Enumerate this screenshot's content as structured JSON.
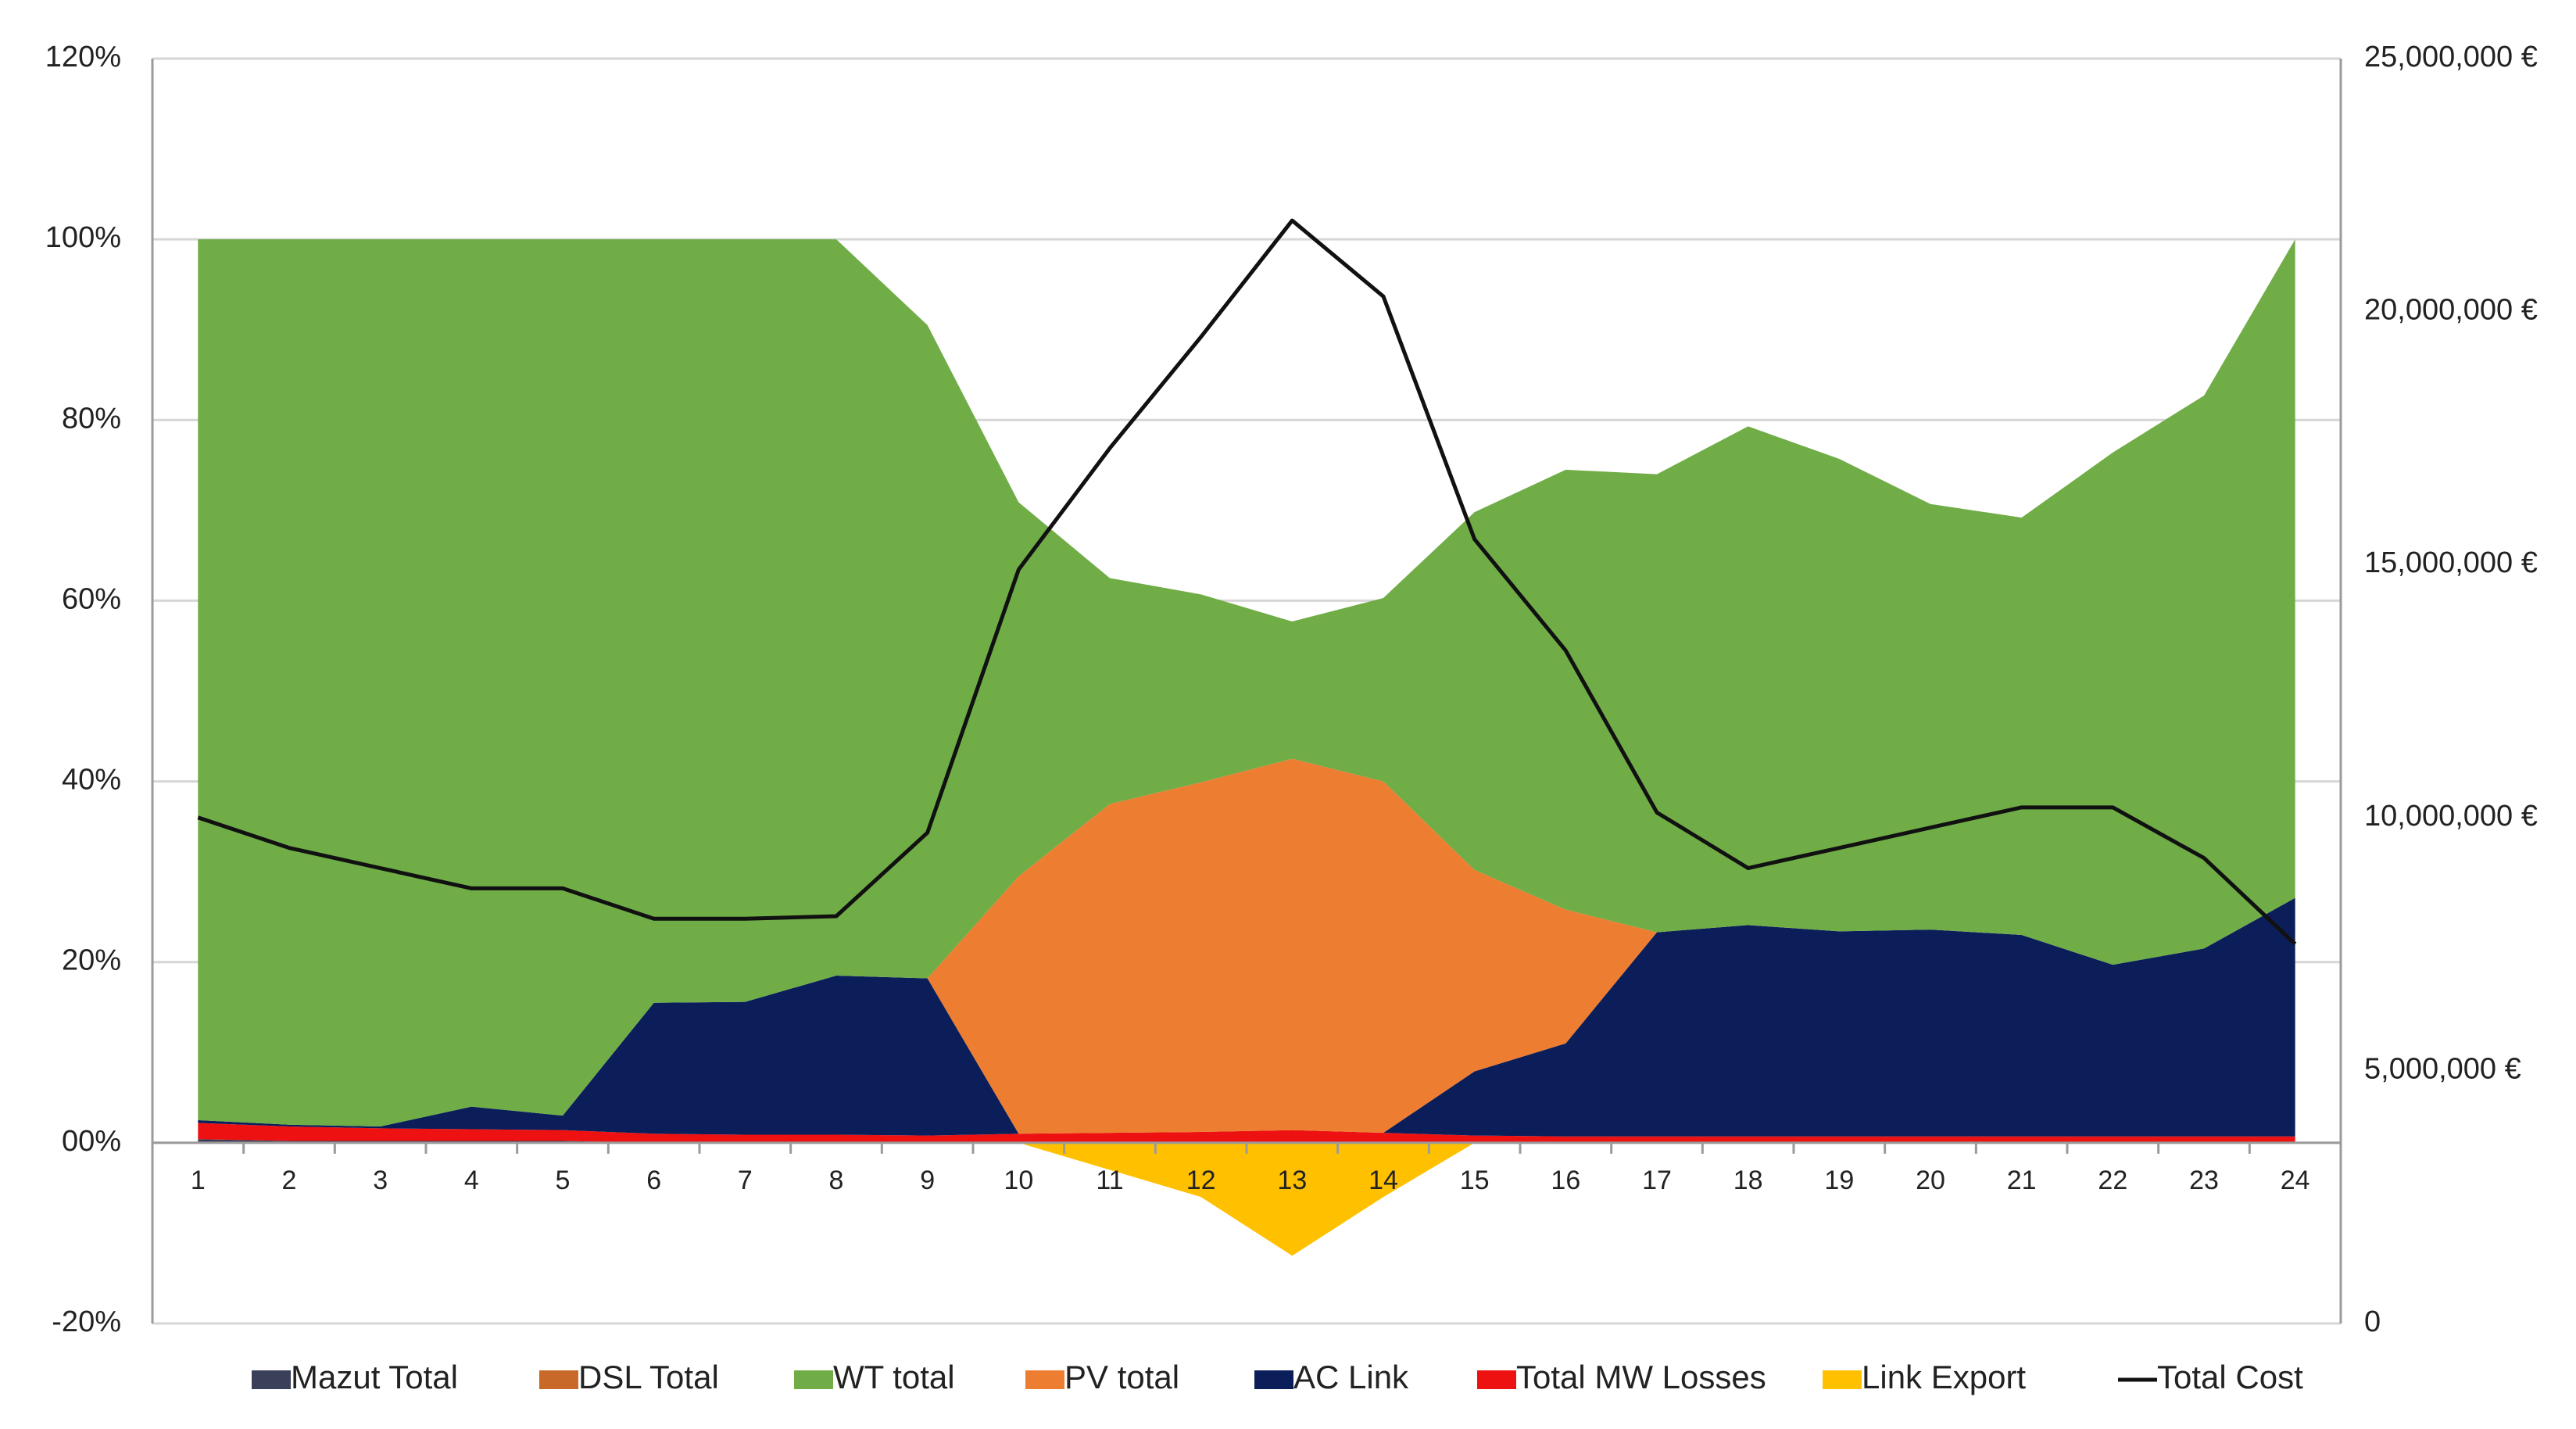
{
  "chart_data": {
    "type": "area",
    "title": "",
    "xlabel": "",
    "ylabel": "",
    "x": [
      1,
      2,
      3,
      4,
      5,
      6,
      7,
      8,
      9,
      10,
      11,
      12,
      13,
      14,
      15,
      16,
      17,
      18,
      19,
      20,
      21,
      22,
      23,
      24
    ],
    "x_tick_labels": [
      "1",
      "2",
      "3",
      "4",
      "5",
      "6",
      "7",
      "8",
      "9",
      "10",
      "11",
      "12",
      "13",
      "14",
      "15",
      "16",
      "17",
      "18",
      "19",
      "20",
      "21",
      "22",
      "23",
      "24"
    ],
    "y_left": {
      "min": -0.2,
      "max": 1.2,
      "ticks": [
        -0.2,
        0,
        0.2,
        0.4,
        0.6,
        0.8,
        1.0,
        1.2
      ],
      "tick_labels": [
        "-20%",
        "00%",
        "20%",
        "40%",
        "60%",
        "80%",
        "100%",
        "120%"
      ]
    },
    "y_right": {
      "min": 0,
      "max": 25000000,
      "ticks": [
        0,
        5000000,
        10000000,
        15000000,
        20000000,
        25000000
      ],
      "tick_labels": [
        "0",
        "5,000,000 €",
        "10,000,000 €",
        "15,000,000 €",
        "20,000,000 €",
        "25,000,000 €"
      ]
    },
    "grid": true,
    "stacked": true,
    "series": [
      {
        "name": "Mazut Total",
        "color": "#3a3f5a",
        "axis": "left",
        "kind": "stacked-area",
        "values": [
          0.004,
          0.002,
          0.002,
          0.002,
          0.002,
          0,
          0,
          0,
          0,
          0,
          0,
          0,
          0,
          0,
          0,
          0,
          0,
          0,
          0,
          0,
          0,
          0,
          0,
          0
        ]
      },
      {
        "name": "DSL Total",
        "color": "#c8692a",
        "axis": "left",
        "kind": "stacked-area",
        "values": [
          0,
          0,
          0,
          0,
          0,
          0,
          0,
          0,
          0,
          0,
          0,
          0,
          0,
          0,
          0,
          0,
          0,
          0,
          0,
          0,
          0,
          0,
          0,
          0
        ]
      },
      {
        "name": "Total MW Losses",
        "color": "#ee1111",
        "axis": "left",
        "kind": "stacked-area",
        "values": [
          0.018,
          0.016,
          0.014,
          0.013,
          0.012,
          0.01,
          0.009,
          0.009,
          0.008,
          0.01,
          0.011,
          0.012,
          0.014,
          0.011,
          0.008,
          0.007,
          0.007,
          0.007,
          0.007,
          0.007,
          0.007,
          0.007,
          0.007,
          0.007
        ]
      },
      {
        "name": "AC Link",
        "color": "#0b1e5a",
        "axis": "left",
        "kind": "stacked-area",
        "values": [
          0.003,
          0.002,
          0.002,
          0.025,
          0.016,
          0.145,
          0.147,
          0.176,
          0.174,
          0,
          0,
          0,
          0,
          0,
          0.071,
          0.103,
          0.226,
          0.234,
          0.227,
          0.229,
          0.223,
          0.19,
          0.208,
          0.264
        ]
      },
      {
        "name": "PV total",
        "color": "#ed7d31",
        "axis": "left",
        "kind": "stacked-area",
        "values": [
          0,
          0,
          0,
          0,
          0,
          0,
          0,
          0,
          0,
          0.285,
          0.364,
          0.387,
          0.411,
          0.389,
          0.223,
          0.148,
          0,
          0,
          0,
          0,
          0,
          0,
          0,
          0
        ]
      },
      {
        "name": "WT total",
        "color": "#70ad47",
        "axis": "left",
        "kind": "stacked-area",
        "values": [
          0.975,
          0.98,
          0.982,
          0.96,
          0.97,
          0.845,
          0.844,
          0.815,
          0.723,
          0.414,
          0.25,
          0.208,
          0.152,
          0.203,
          0.396,
          0.487,
          0.507,
          0.552,
          0.523,
          0.471,
          0.462,
          0.567,
          0.612,
          0.729
        ]
      },
      {
        "name": "Link Export",
        "color": "#ffc000",
        "axis": "left",
        "kind": "negative-area",
        "values": [
          0,
          0,
          0,
          0,
          0,
          0,
          0,
          0,
          0,
          0,
          -0.03,
          -0.06,
          -0.125,
          -0.06,
          0,
          0,
          0,
          0,
          0,
          0,
          0,
          0,
          0,
          0
        ]
      },
      {
        "name": "Total Cost",
        "color": "#111111",
        "axis": "right",
        "kind": "line",
        "values": [
          10000000,
          9400000,
          9000000,
          8600000,
          8600000,
          8000000,
          8000000,
          8050000,
          9700000,
          14900000,
          17300000,
          19500000,
          21800000,
          20300000,
          15500000,
          13300000,
          10100000,
          9000000,
          9400000,
          9800000,
          10200000,
          10200000,
          9200000,
          7500000
        ]
      }
    ],
    "legend": {
      "position": "bottom",
      "entries": [
        {
          "label": "Mazut Total",
          "color": "#3a3f5a",
          "kind": "swatch"
        },
        {
          "label": "DSL Total",
          "color": "#c8692a",
          "kind": "swatch"
        },
        {
          "label": "WT total",
          "color": "#70ad47",
          "kind": "swatch"
        },
        {
          "label": "PV total",
          "color": "#ed7d31",
          "kind": "swatch"
        },
        {
          "label": "AC Link",
          "color": "#0b1e5a",
          "kind": "swatch"
        },
        {
          "label": "Total MW Losses",
          "color": "#ee1111",
          "kind": "swatch"
        },
        {
          "label": "Link Export",
          "color": "#ffc000",
          "kind": "swatch"
        },
        {
          "label": "Total Cost",
          "color": "#111111",
          "kind": "line"
        }
      ]
    }
  }
}
